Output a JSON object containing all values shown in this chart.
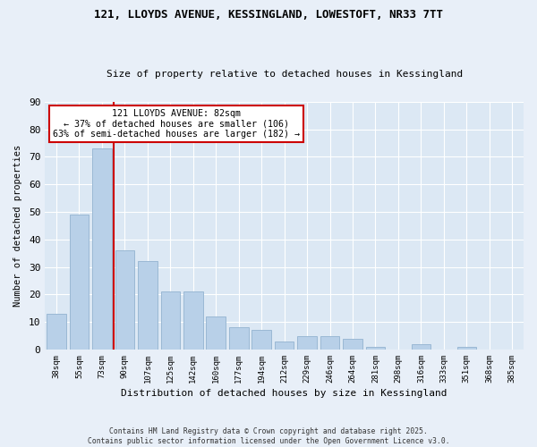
{
  "title": "121, LLOYDS AVENUE, KESSINGLAND, LOWESTOFT, NR33 7TT",
  "subtitle": "Size of property relative to detached houses in Kessingland",
  "xlabel": "Distribution of detached houses by size in Kessingland",
  "ylabel": "Number of detached properties",
  "categories": [
    "38sqm",
    "55sqm",
    "73sqm",
    "90sqm",
    "107sqm",
    "125sqm",
    "142sqm",
    "160sqm",
    "177sqm",
    "194sqm",
    "212sqm",
    "229sqm",
    "246sqm",
    "264sqm",
    "281sqm",
    "298sqm",
    "316sqm",
    "333sqm",
    "351sqm",
    "368sqm",
    "385sqm"
  ],
  "values": [
    13,
    49,
    73,
    36,
    32,
    21,
    21,
    12,
    8,
    7,
    3,
    5,
    5,
    4,
    1,
    0,
    2,
    0,
    1,
    0,
    0
  ],
  "bar_color": "#b8d0e8",
  "bar_edge_color": "#9ab8d4",
  "vline_color": "#cc0000",
  "annotation_title": "121 LLOYDS AVENUE: 82sqm",
  "annotation_line1": "← 37% of detached houses are smaller (106)",
  "annotation_line2": "63% of semi-detached houses are larger (182) →",
  "annotation_box_color": "#ffffff",
  "annotation_box_edge": "#cc0000",
  "ylim": [
    0,
    90
  ],
  "yticks": [
    0,
    10,
    20,
    30,
    40,
    50,
    60,
    70,
    80,
    90
  ],
  "footer1": "Contains HM Land Registry data © Crown copyright and database right 2025.",
  "footer2": "Contains public sector information licensed under the Open Government Licence v3.0.",
  "bg_color": "#e8eff8",
  "plot_bg_color": "#dce8f4",
  "grid_color": "#c8d8ec"
}
